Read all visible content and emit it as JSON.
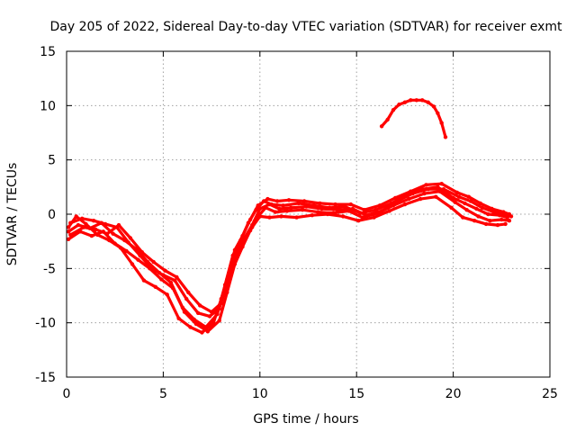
{
  "chart_data": {
    "type": "scatter",
    "title": "Day 205 of 2022, Sidereal Day-to-day VTEC variation (SDTVAR) for receiver exmt",
    "xlabel": "GPS time / hours",
    "ylabel": "SDTVAR / TECUs",
    "xlim": [
      0,
      25
    ],
    "ylim": [
      -15,
      15
    ],
    "xticks": [
      0,
      5,
      10,
      15,
      20,
      25
    ],
    "yticks": [
      -15,
      -10,
      -5,
      0,
      5,
      10,
      15
    ],
    "xtick_labels": [
      "0",
      "5",
      "10",
      "15",
      "20",
      "25"
    ],
    "ytick_labels": [
      "-15",
      "-10",
      "-5",
      "0",
      "5",
      "10",
      "15"
    ],
    "grid": true,
    "color": "#ff0000",
    "series": [
      {
        "name": "track-1",
        "points": [
          [
            0.1,
            -1.6
          ],
          [
            0.6,
            -1.0
          ],
          [
            1.2,
            -1.3
          ],
          [
            1.8,
            -0.8
          ],
          [
            2.4,
            -1.8
          ],
          [
            3.0,
            -2.4
          ],
          [
            3.6,
            -3.2
          ],
          [
            4.2,
            -4.4
          ],
          [
            4.8,
            -5.4
          ],
          [
            5.4,
            -6.3
          ],
          [
            6.0,
            -8.6
          ],
          [
            6.6,
            -9.7
          ],
          [
            7.2,
            -10.4
          ],
          [
            7.8,
            -9.2
          ],
          [
            8.2,
            -6.5
          ],
          [
            8.6,
            -3.8
          ],
          [
            9.0,
            -2.4
          ],
          [
            9.4,
            -0.8
          ],
          [
            9.8,
            0.4
          ],
          [
            10.2,
            1.2
          ],
          [
            10.6,
            0.9
          ],
          [
            11.2,
            0.8
          ],
          [
            12.0,
            1.0
          ],
          [
            12.8,
            0.8
          ],
          [
            13.6,
            0.6
          ],
          [
            14.4,
            0.7
          ],
          [
            15.2,
            0.1
          ],
          [
            16.0,
            0.4
          ],
          [
            16.8,
            1.0
          ],
          [
            17.6,
            1.8
          ],
          [
            18.4,
            2.3
          ],
          [
            19.2,
            2.5
          ],
          [
            20.0,
            1.5
          ],
          [
            20.6,
            1.0
          ],
          [
            21.2,
            0.5
          ],
          [
            21.8,
            0.0
          ],
          [
            22.4,
            -0.1
          ],
          [
            22.8,
            -0.3
          ]
        ]
      },
      {
        "name": "track-2",
        "points": [
          [
            0.1,
            -2.3
          ],
          [
            0.7,
            -1.6
          ],
          [
            1.3,
            -2.0
          ],
          [
            1.9,
            -1.6
          ],
          [
            2.5,
            -2.7
          ],
          [
            3.1,
            -3.4
          ],
          [
            3.7,
            -4.2
          ],
          [
            4.3,
            -5.0
          ],
          [
            4.9,
            -6.0
          ],
          [
            5.5,
            -6.8
          ],
          [
            6.1,
            -9.0
          ],
          [
            6.7,
            -10.1
          ],
          [
            7.3,
            -10.8
          ],
          [
            7.9,
            -9.8
          ],
          [
            8.3,
            -7.2
          ],
          [
            8.7,
            -4.6
          ],
          [
            9.1,
            -3.0
          ],
          [
            9.5,
            -1.5
          ],
          [
            9.9,
            -0.2
          ],
          [
            10.3,
            0.6
          ],
          [
            10.8,
            0.2
          ],
          [
            11.4,
            0.3
          ],
          [
            12.2,
            0.4
          ],
          [
            13.0,
            0.2
          ],
          [
            13.8,
            0.1
          ],
          [
            14.6,
            0.3
          ],
          [
            15.3,
            -0.3
          ],
          [
            16.1,
            0.1
          ],
          [
            16.9,
            0.8
          ],
          [
            17.7,
            1.4
          ],
          [
            18.5,
            1.9
          ],
          [
            19.3,
            2.1
          ],
          [
            20.1,
            1.1
          ],
          [
            20.7,
            0.4
          ],
          [
            21.3,
            -0.2
          ],
          [
            21.9,
            -0.6
          ],
          [
            22.5,
            -0.5
          ],
          [
            22.9,
            -0.6
          ]
        ]
      },
      {
        "name": "track-3",
        "points": [
          [
            0.2,
            -0.8
          ],
          [
            0.8,
            -0.4
          ],
          [
            1.4,
            -0.6
          ],
          [
            2.0,
            -0.9
          ],
          [
            2.6,
            -1.2
          ],
          [
            3.2,
            -2.6
          ],
          [
            3.8,
            -3.8
          ],
          [
            4.4,
            -5.0
          ],
          [
            5.0,
            -5.6
          ],
          [
            5.6,
            -6.1
          ],
          [
            6.2,
            -7.8
          ],
          [
            6.8,
            -9.1
          ],
          [
            7.4,
            -9.4
          ],
          [
            7.9,
            -8.7
          ],
          [
            8.3,
            -6.0
          ],
          [
            8.7,
            -3.3
          ],
          [
            9.1,
            -2.0
          ],
          [
            9.5,
            -0.5
          ],
          [
            9.9,
            0.8
          ],
          [
            10.4,
            1.4
          ],
          [
            10.9,
            1.2
          ],
          [
            11.5,
            1.3
          ],
          [
            12.3,
            1.2
          ],
          [
            13.1,
            1.0
          ],
          [
            13.9,
            0.9
          ],
          [
            14.7,
            0.9
          ],
          [
            15.4,
            0.4
          ],
          [
            16.2,
            0.8
          ],
          [
            17.0,
            1.5
          ],
          [
            17.8,
            2.1
          ],
          [
            18.6,
            2.7
          ],
          [
            19.4,
            2.8
          ],
          [
            20.2,
            2.0
          ],
          [
            20.8,
            1.6
          ],
          [
            21.4,
            1.0
          ],
          [
            22.0,
            0.5
          ],
          [
            22.6,
            0.2
          ],
          [
            22.9,
            0.0
          ]
        ]
      },
      {
        "name": "track-4",
        "points": [
          [
            0.1,
            -1.2
          ],
          [
            0.5,
            -0.2
          ],
          [
            1.0,
            -0.9
          ],
          [
            1.6,
            -1.9
          ],
          [
            2.2,
            -2.4
          ],
          [
            2.8,
            -3.1
          ],
          [
            3.4,
            -4.6
          ],
          [
            4.0,
            -6.1
          ],
          [
            4.6,
            -6.7
          ],
          [
            5.2,
            -7.4
          ],
          [
            5.8,
            -9.6
          ],
          [
            6.4,
            -10.4
          ],
          [
            7.0,
            -10.9
          ],
          [
            7.6,
            -10.0
          ],
          [
            8.0,
            -7.8
          ],
          [
            8.4,
            -5.4
          ],
          [
            8.8,
            -3.7
          ],
          [
            9.2,
            -2.3
          ],
          [
            9.6,
            -1.2
          ],
          [
            10.0,
            -0.2
          ],
          [
            10.5,
            -0.3
          ],
          [
            11.1,
            -0.2
          ],
          [
            11.9,
            -0.3
          ],
          [
            12.7,
            -0.1
          ],
          [
            13.5,
            0.0
          ],
          [
            14.3,
            -0.2
          ],
          [
            15.1,
            -0.6
          ],
          [
            15.9,
            -0.3
          ],
          [
            16.7,
            0.3
          ],
          [
            17.5,
            0.9
          ],
          [
            18.3,
            1.4
          ],
          [
            19.1,
            1.6
          ],
          [
            19.9,
            0.6
          ],
          [
            20.5,
            -0.3
          ],
          [
            21.1,
            -0.6
          ],
          [
            21.7,
            -0.9
          ],
          [
            22.3,
            -1.0
          ],
          [
            22.7,
            -0.9
          ]
        ]
      },
      {
        "name": "track-5",
        "points": [
          [
            0.2,
            -1.9
          ],
          [
            0.9,
            -1.2
          ],
          [
            1.5,
            -1.4
          ],
          [
            2.1,
            -1.8
          ],
          [
            2.7,
            -1.0
          ],
          [
            3.3,
            -2.2
          ],
          [
            3.9,
            -3.5
          ],
          [
            4.5,
            -4.4
          ],
          [
            5.1,
            -5.2
          ],
          [
            5.7,
            -5.8
          ],
          [
            6.3,
            -7.2
          ],
          [
            6.9,
            -8.4
          ],
          [
            7.5,
            -9.0
          ],
          [
            8.0,
            -8.2
          ],
          [
            8.4,
            -5.8
          ],
          [
            8.8,
            -3.2
          ],
          [
            9.2,
            -2.2
          ],
          [
            9.6,
            -1.0
          ],
          [
            10.0,
            0.5
          ],
          [
            10.5,
            0.9
          ],
          [
            11.0,
            0.5
          ],
          [
            11.6,
            0.6
          ],
          [
            12.4,
            0.7
          ],
          [
            13.2,
            0.5
          ],
          [
            14.0,
            0.4
          ],
          [
            14.8,
            0.5
          ],
          [
            15.5,
            -0.1
          ],
          [
            16.3,
            0.3
          ],
          [
            17.1,
            1.2
          ],
          [
            17.9,
            1.9
          ],
          [
            18.7,
            2.3
          ],
          [
            19.5,
            2.3
          ],
          [
            20.3,
            1.6
          ],
          [
            20.9,
            1.2
          ],
          [
            21.5,
            0.6
          ],
          [
            22.1,
            0.2
          ],
          [
            22.7,
            -0.1
          ],
          [
            23.0,
            -0.2
          ]
        ]
      },
      {
        "name": "track-6",
        "points": [
          [
            16.3,
            8.1
          ],
          [
            16.6,
            8.7
          ],
          [
            16.9,
            9.6
          ],
          [
            17.2,
            10.1
          ],
          [
            17.5,
            10.3
          ],
          [
            17.8,
            10.5
          ],
          [
            18.1,
            10.5
          ],
          [
            18.4,
            10.5
          ],
          [
            18.7,
            10.3
          ],
          [
            19.0,
            9.9
          ],
          [
            19.2,
            9.3
          ],
          [
            19.4,
            8.4
          ],
          [
            19.6,
            7.1
          ]
        ]
      }
    ]
  }
}
